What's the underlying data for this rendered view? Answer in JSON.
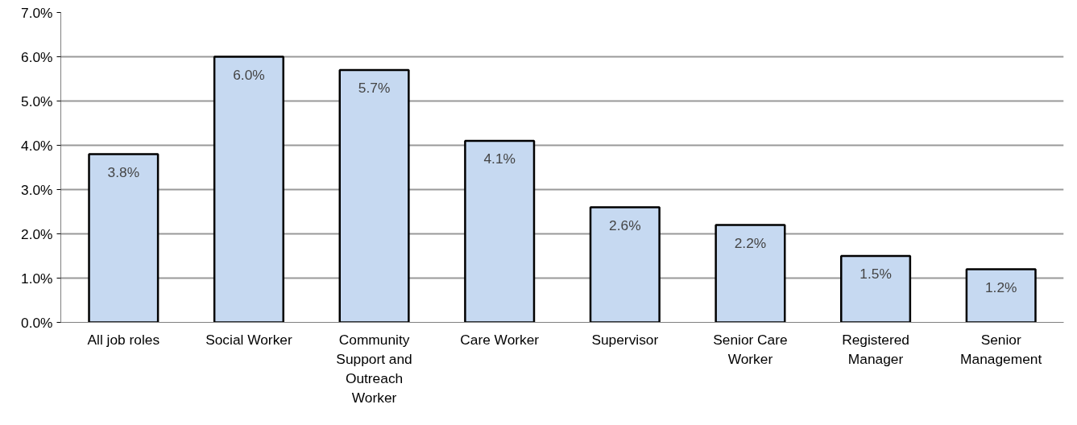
{
  "chart_data": {
    "type": "bar",
    "categories": [
      "All job roles",
      "Social Worker",
      "Community Support and Outreach Worker",
      "Care Worker",
      "Supervisor",
      "Senior Care Worker",
      "Registered Manager",
      "Senior Management"
    ],
    "values": [
      3.8,
      6.0,
      5.7,
      4.1,
      2.6,
      2.2,
      1.5,
      1.2
    ],
    "color": "#c6d9f1",
    "ylim": [
      0,
      7
    ],
    "yticks": [
      {
        "value": 0,
        "label": "0.0%"
      },
      {
        "value": 1,
        "label": "1.0%"
      },
      {
        "value": 2,
        "label": "2.0%"
      },
      {
        "value": 3,
        "label": "3.0%"
      },
      {
        "value": 4,
        "label": "4.0%"
      },
      {
        "value": 5,
        "label": "5.0%"
      },
      {
        "value": 6,
        "label": "6.0%"
      },
      {
        "value": 7,
        "label": "7.0%"
      }
    ],
    "value_labels": [
      "3.8%",
      "6.0%",
      "5.7%",
      "4.1%",
      "2.6%",
      "2.2%",
      "1.5%",
      "1.2%"
    ],
    "grid": "y"
  }
}
